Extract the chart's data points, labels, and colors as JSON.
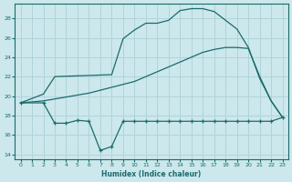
{
  "xlabel": "Humidex (Indice chaleur)",
  "bg_color": "#cce8ec",
  "grid_color": "#b0d4da",
  "line_color": "#1a6b6b",
  "xlim": [
    -0.5,
    23.5
  ],
  "ylim": [
    13.5,
    29.5
  ],
  "yticks": [
    14,
    16,
    18,
    20,
    22,
    24,
    26,
    28
  ],
  "xticks": [
    0,
    1,
    2,
    3,
    4,
    5,
    6,
    7,
    8,
    9,
    10,
    11,
    12,
    13,
    14,
    15,
    16,
    17,
    18,
    19,
    20,
    21,
    22,
    23
  ],
  "line1_x": [
    0,
    2,
    3,
    8,
    9,
    10,
    11,
    12,
    13,
    14,
    15,
    16,
    17,
    18,
    19,
    20,
    21,
    22,
    23
  ],
  "line1_y": [
    19.3,
    20.2,
    22.0,
    22.2,
    25.9,
    26.8,
    27.5,
    27.5,
    27.8,
    28.8,
    29.0,
    29.0,
    28.7,
    27.8,
    26.9,
    25.0,
    21.8,
    19.5,
    17.8
  ],
  "line2_x": [
    0,
    2,
    3,
    4,
    5,
    6,
    7,
    8,
    9,
    10,
    11,
    12,
    13,
    14,
    15,
    16,
    17,
    18,
    19,
    20,
    21,
    22,
    23
  ],
  "line2_y": [
    19.3,
    19.5,
    19.7,
    19.9,
    20.1,
    20.3,
    20.6,
    20.9,
    21.2,
    21.5,
    22.0,
    22.5,
    23.0,
    23.5,
    24.0,
    24.5,
    24.8,
    25.0,
    25.0,
    24.9,
    22.0,
    19.5,
    17.8
  ],
  "line3_x": [
    0,
    2,
    3,
    4,
    5,
    6,
    7,
    8,
    9,
    10,
    11,
    12,
    13,
    14,
    15,
    16,
    17,
    18,
    19,
    20,
    21,
    22,
    23
  ],
  "line3_y": [
    19.3,
    19.3,
    17.2,
    17.2,
    17.5,
    17.4,
    14.4,
    14.8,
    17.4,
    17.4,
    17.4,
    17.4,
    17.4,
    17.4,
    17.4,
    17.4,
    17.4,
    17.4,
    17.4,
    17.4,
    17.4,
    17.4,
    17.8
  ]
}
